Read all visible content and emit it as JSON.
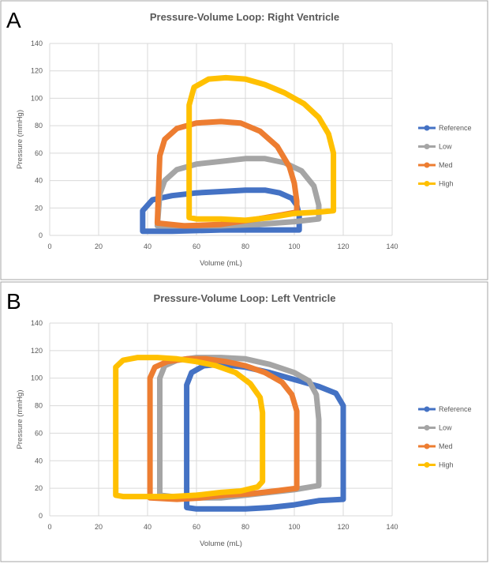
{
  "chart_data": [
    {
      "type": "line",
      "panel_label": "A",
      "title": "Pressure-Volume Loop: Right Ventricle",
      "xlabel": "Volume (mL)",
      "ylabel": "Pressure (mmHg)",
      "xlim": [
        0,
        140
      ],
      "ylim": [
        0,
        140
      ],
      "x_ticks": [
        "0",
        "20",
        "40",
        "60",
        "80",
        "100",
        "120",
        "140"
      ],
      "y_ticks": [
        "0",
        "20",
        "40",
        "60",
        "80",
        "100",
        "120",
        "140"
      ],
      "grid": true,
      "legend_position": "right",
      "series": [
        {
          "name": "Reference",
          "color": "#4472C4",
          "points": [
            [
              38,
              3
            ],
            [
              38,
              18
            ],
            [
              42,
              26
            ],
            [
              50,
              29
            ],
            [
              60,
              31
            ],
            [
              70,
              32
            ],
            [
              80,
              33
            ],
            [
              88,
              33
            ],
            [
              94,
              31
            ],
            [
              99,
              27
            ],
            [
              101,
              22
            ],
            [
              102,
              15
            ],
            [
              102,
              7
            ],
            [
              102,
              4
            ],
            [
              90,
              4
            ],
            [
              70,
              4
            ],
            [
              50,
              3
            ],
            [
              38,
              3
            ]
          ]
        },
        {
          "name": "Low",
          "color": "#A5A5A5",
          "points": [
            [
              44,
              7
            ],
            [
              45,
              30
            ],
            [
              47,
              40
            ],
            [
              52,
              48
            ],
            [
              60,
              52
            ],
            [
              70,
              54
            ],
            [
              80,
              56
            ],
            [
              88,
              56
            ],
            [
              96,
              53
            ],
            [
              103,
              47
            ],
            [
              108,
              36
            ],
            [
              110,
              22
            ],
            [
              110,
              12
            ],
            [
              100,
              10
            ],
            [
              85,
              8
            ],
            [
              70,
              7
            ],
            [
              55,
              7
            ],
            [
              44,
              7
            ]
          ]
        },
        {
          "name": "Med",
          "color": "#ED7D31",
          "points": [
            [
              44,
              9
            ],
            [
              45,
              58
            ],
            [
              47,
              70
            ],
            [
              52,
              78
            ],
            [
              60,
              82
            ],
            [
              70,
              83
            ],
            [
              78,
              82
            ],
            [
              86,
              76
            ],
            [
              93,
              65
            ],
            [
              98,
              50
            ],
            [
              100,
              38
            ],
            [
              101,
              25
            ],
            [
              101,
              17
            ],
            [
              95,
              15
            ],
            [
              85,
              12
            ],
            [
              70,
              8
            ],
            [
              55,
              7
            ],
            [
              44,
              9
            ]
          ]
        },
        {
          "name": "High",
          "color": "#FFC000",
          "points": [
            [
              57,
              13
            ],
            [
              57,
              95
            ],
            [
              59,
              108
            ],
            [
              65,
              114
            ],
            [
              72,
              115
            ],
            [
              80,
              114
            ],
            [
              88,
              110
            ],
            [
              96,
              104
            ],
            [
              104,
              96
            ],
            [
              110,
              86
            ],
            [
              114,
              74
            ],
            [
              116,
              60
            ],
            [
              116,
              40
            ],
            [
              116,
              18
            ],
            [
              110,
              17
            ],
            [
              100,
              16
            ],
            [
              90,
              13
            ],
            [
              80,
              11
            ],
            [
              70,
              12
            ],
            [
              60,
              12
            ],
            [
              57,
              13
            ]
          ]
        }
      ]
    },
    {
      "type": "line",
      "panel_label": "B",
      "title": "Pressure-Volume Loop: Left Ventricle",
      "xlabel": "Volume (mL)",
      "ylabel": "Pressure (mmHg)",
      "xlim": [
        0,
        140
      ],
      "ylim": [
        0,
        140
      ],
      "x_ticks": [
        "0",
        "20",
        "40",
        "60",
        "80",
        "100",
        "120",
        "140"
      ],
      "y_ticks": [
        "0",
        "20",
        "40",
        "60",
        "80",
        "100",
        "120",
        "140"
      ],
      "grid": true,
      "legend_position": "right",
      "series": [
        {
          "name": "Reference",
          "color": "#4472C4",
          "points": [
            [
              56,
              6
            ],
            [
              56,
              95
            ],
            [
              58,
              104
            ],
            [
              63,
              109
            ],
            [
              70,
              110
            ],
            [
              80,
              108
            ],
            [
              90,
              104
            ],
            [
              100,
              99
            ],
            [
              110,
              94
            ],
            [
              117,
              89
            ],
            [
              120,
              80
            ],
            [
              120,
              40
            ],
            [
              120,
              12
            ],
            [
              110,
              11
            ],
            [
              100,
              8
            ],
            [
              90,
              6
            ],
            [
              80,
              5
            ],
            [
              70,
              5
            ],
            [
              60,
              5
            ],
            [
              56,
              6
            ]
          ]
        },
        {
          "name": "Low",
          "color": "#A5A5A5",
          "points": [
            [
              45,
              15
            ],
            [
              45,
              100
            ],
            [
              47,
              109
            ],
            [
              52,
              113
            ],
            [
              60,
              115
            ],
            [
              70,
              115
            ],
            [
              80,
              114
            ],
            [
              90,
              110
            ],
            [
              100,
              104
            ],
            [
              106,
              98
            ],
            [
              109,
              88
            ],
            [
              110,
              70
            ],
            [
              110,
              22
            ],
            [
              100,
              19
            ],
            [
              90,
              17
            ],
            [
              80,
              15
            ],
            [
              70,
              13
            ],
            [
              60,
              13
            ],
            [
              50,
              14
            ],
            [
              45,
              15
            ]
          ]
        },
        {
          "name": "Med",
          "color": "#ED7D31",
          "points": [
            [
              41,
              13
            ],
            [
              41,
              100
            ],
            [
              43,
              108
            ],
            [
              48,
              112
            ],
            [
              56,
              114
            ],
            [
              64,
              114
            ],
            [
              72,
              112
            ],
            [
              80,
              109
            ],
            [
              88,
              104
            ],
            [
              95,
              97
            ],
            [
              99,
              88
            ],
            [
              101,
              76
            ],
            [
              101,
              20
            ],
            [
              92,
              18
            ],
            [
              82,
              16
            ],
            [
              72,
              15
            ],
            [
              62,
              13
            ],
            [
              52,
              12
            ],
            [
              41,
              13
            ]
          ]
        },
        {
          "name": "High",
          "color": "#FFC000",
          "points": [
            [
              27,
              15
            ],
            [
              27,
              108
            ],
            [
              30,
              113
            ],
            [
              36,
              115
            ],
            [
              44,
              115
            ],
            [
              52,
              114
            ],
            [
              60,
              112
            ],
            [
              68,
              109
            ],
            [
              76,
              104
            ],
            [
              82,
              96
            ],
            [
              86,
              86
            ],
            [
              87,
              75
            ],
            [
              87,
              25
            ],
            [
              85,
              21
            ],
            [
              78,
              18
            ],
            [
              70,
              17
            ],
            [
              60,
              15
            ],
            [
              50,
              14
            ],
            [
              40,
              14
            ],
            [
              30,
              14
            ],
            [
              27,
              15
            ]
          ]
        }
      ]
    }
  ]
}
